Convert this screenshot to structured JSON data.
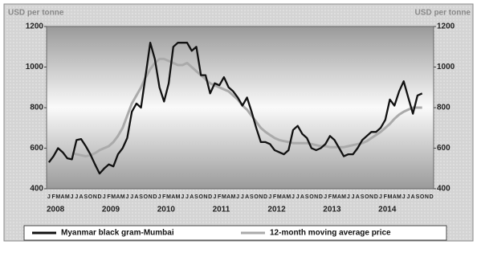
{
  "chart_data": {
    "type": "line",
    "y_label": "USD per tonne",
    "y2_label": "USD per tonne",
    "categories": [
      "J",
      "F",
      "M",
      "A",
      "M",
      "J",
      "J",
      "A",
      "S",
      "O",
      "N",
      "D",
      "J",
      "F",
      "M",
      "A",
      "M",
      "J",
      "J",
      "A",
      "S",
      "O",
      "N",
      "D",
      "J",
      "F",
      "M",
      "A",
      "M",
      "J",
      "J",
      "A",
      "S",
      "O",
      "N",
      "D",
      "J",
      "F",
      "M",
      "A",
      "M",
      "J",
      "J",
      "A",
      "S",
      "O",
      "N",
      "D",
      "J",
      "F",
      "M",
      "A",
      "M",
      "J",
      "J",
      "A",
      "S",
      "O",
      "N",
      "D",
      "J",
      "F",
      "M",
      "A",
      "M",
      "J",
      "J",
      "A",
      "S",
      "O",
      "N",
      "D",
      "J",
      "F",
      "M",
      "A",
      "M",
      "J",
      "J",
      "A",
      "S",
      "O",
      "N",
      "D"
    ],
    "year_labels": [
      "2008",
      "2009",
      "2010",
      "2011",
      "2012",
      "2013",
      "2014"
    ],
    "series": [
      {
        "name": "Myanmar black gram-Mumbai",
        "color": "#111111",
        "values": [
          530,
          560,
          600,
          580,
          550,
          545,
          640,
          645,
          610,
          570,
          520,
          475,
          500,
          520,
          510,
          570,
          600,
          650,
          780,
          820,
          800,
          960,
          1120,
          1040,
          900,
          830,
          920,
          1100,
          1120,
          1120,
          1120,
          1080,
          1100,
          960,
          960,
          870,
          920,
          910,
          950,
          900,
          880,
          850,
          810,
          850,
          780,
          700,
          630,
          630,
          620,
          590,
          580,
          570,
          590,
          690,
          710,
          670,
          650,
          600,
          590,
          600,
          620,
          660,
          640,
          600,
          560,
          570,
          570,
          600,
          640,
          660,
          680,
          680,
          700,
          740,
          840,
          810,
          880,
          930,
          850,
          770,
          860,
          870,
          null,
          null
        ]
      },
      {
        "name": "12-month moving average price",
        "color": "#aaaaaa",
        "values": [
          null,
          null,
          null,
          null,
          null,
          575,
          570,
          565,
          560,
          565,
          575,
          590,
          600,
          610,
          630,
          660,
          700,
          760,
          820,
          860,
          900,
          950,
          990,
          1020,
          1040,
          1040,
          1030,
          1020,
          1010,
          1010,
          1020,
          1000,
          980,
          960,
          940,
          920,
          910,
          900,
          890,
          880,
          860,
          840,
          810,
          790,
          760,
          730,
          700,
          680,
          665,
          650,
          640,
          635,
          630,
          625,
          625,
          625,
          625,
          620,
          615,
          610,
          610,
          605,
          605,
          605,
          605,
          610,
          615,
          620,
          625,
          635,
          650,
          665,
          680,
          700,
          720,
          745,
          765,
          780,
          790,
          800,
          800,
          800,
          null,
          null
        ]
      }
    ],
    "ylim": [
      400,
      1200
    ],
    "yticks": [
      400,
      600,
      800,
      1000,
      1200
    ],
    "y2lim": [
      400,
      1200
    ],
    "y2ticks": [
      400,
      600,
      800,
      1000,
      1200
    ]
  }
}
